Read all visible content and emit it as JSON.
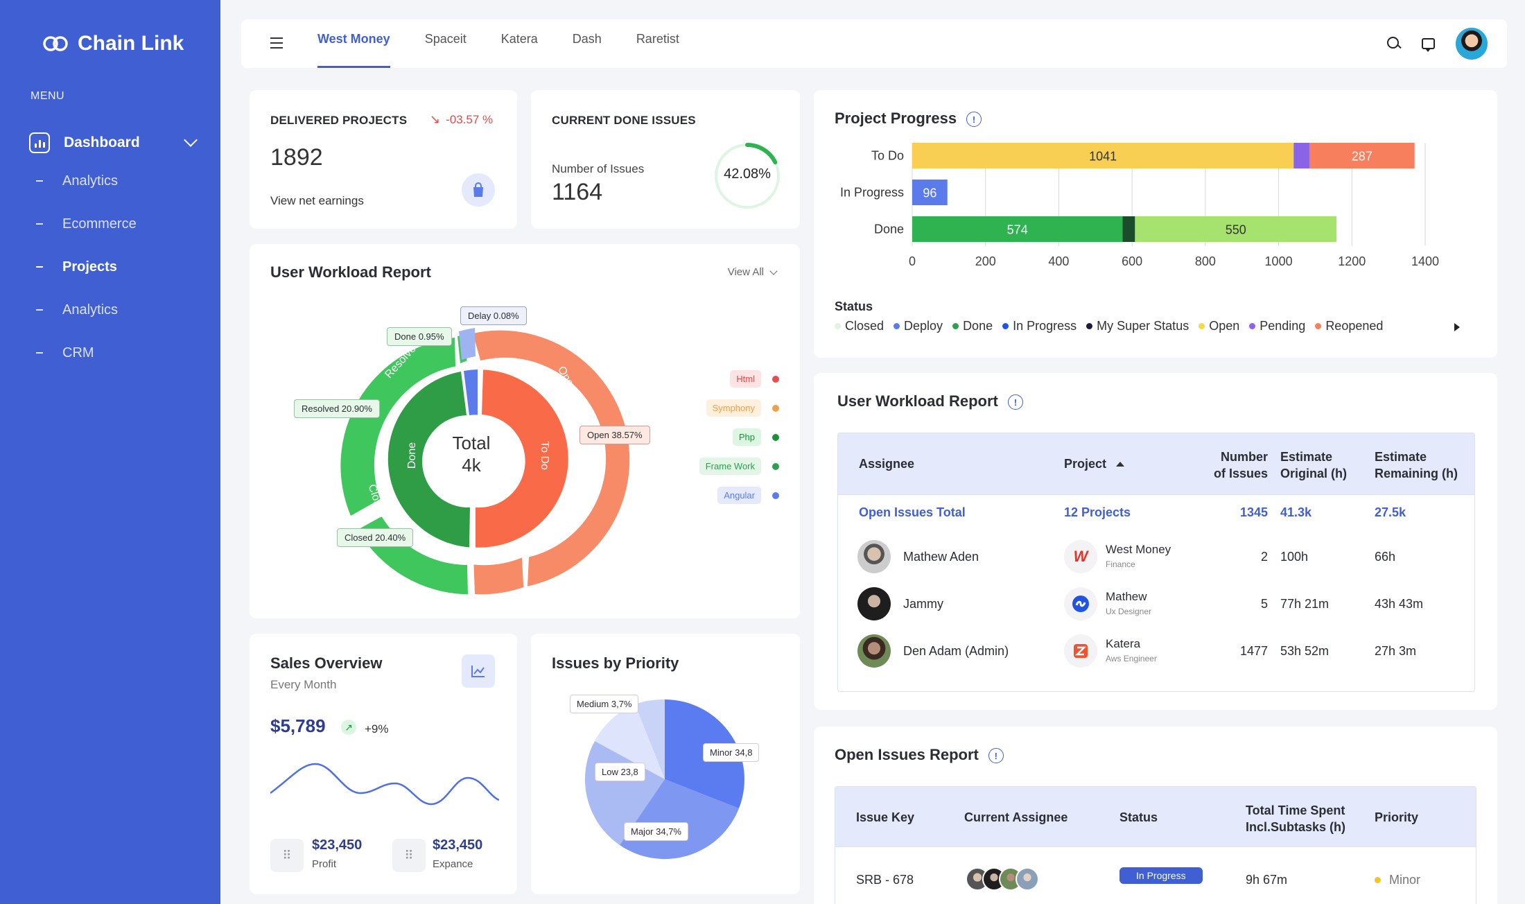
{
  "brand": {
    "name": "Chain Link"
  },
  "sidebar": {
    "menu_label": "MENU",
    "dashboard": "Dashboard",
    "items": [
      {
        "label": "Analytics"
      },
      {
        "label": "Ecommerce"
      },
      {
        "label": "Projects"
      },
      {
        "label": "Analytics"
      },
      {
        "label": "CRM"
      }
    ]
  },
  "topbar": {
    "tabs": [
      "West Money",
      "Spaceit",
      "Katera",
      "Dash",
      "Raretist"
    ]
  },
  "delivered": {
    "label": "DELIVERED PROJECTS",
    "change": "-03.57 %",
    "value": "1892",
    "link": "View net earnings"
  },
  "done_issues": {
    "label": "CURRENT DONE ISSUES",
    "sub": "Number of Issues",
    "value": "1164",
    "percent": "42.08%",
    "percent_value": 42.08
  },
  "workload": {
    "title": "User Workload Report",
    "view_all": "View All",
    "center_title": "Total",
    "center_value": "4k",
    "callouts": {
      "delay": "Delay 0.08%",
      "done": "Done 0.95%",
      "resolved": "Resolved 20.90%",
      "open": "Open 38.57%",
      "closed": "Closed 20.40%"
    },
    "ring_labels": {
      "resolved": "Resolved",
      "open": "Open",
      "closed": "Closed",
      "done": "Done",
      "todo_inner": "To Do",
      "todo_outer": "To Do"
    },
    "legend": [
      {
        "label": "Html",
        "color": "#e84c4c",
        "bg": "#fde3e3"
      },
      {
        "label": "Symphony",
        "color": "#f0a04b",
        "bg": "#fdf0df"
      },
      {
        "label": "Php",
        "color": "#1f8f3a",
        "bg": "#dcf6e2"
      },
      {
        "label": "Frame Work",
        "color": "#2f9e4f",
        "bg": "#e2f5e7"
      },
      {
        "label": "Angular",
        "color": "#5b7bea",
        "bg": "#e4e9fb"
      }
    ]
  },
  "sales": {
    "title": "Sales Overview",
    "sub": "Every Month",
    "value": "$5,789",
    "change": "+9%",
    "profit_value": "$23,450",
    "profit_label": "Profit",
    "expense_value": "$23,450",
    "expense_label": "Expance"
  },
  "priority": {
    "title": "Issues by Priority",
    "labels": {
      "medium": "Medium 3,7%",
      "minor": "Minor 34,8",
      "low": "Low 23,8",
      "major": "Major 34,7%"
    }
  },
  "progress": {
    "title": "Project Progress",
    "status_label": "Status",
    "status_legend": [
      {
        "label": "Closed",
        "color": "#dff5e3"
      },
      {
        "label": "Deploy",
        "color": "#5b7bea"
      },
      {
        "label": "Done",
        "color": "#2f9e4f"
      },
      {
        "label": "In Progress",
        "color": "#1f55e0"
      },
      {
        "label": "My Super Status",
        "color": "#1c1c3a"
      },
      {
        "label": "Open",
        "color": "#f5d94a"
      },
      {
        "label": "Pending",
        "color": "#8a63e6"
      },
      {
        "label": "Reopened",
        "color": "#f77f5e"
      }
    ]
  },
  "chart_data": {
    "type": "bar",
    "orientation": "horizontal",
    "stacked": true,
    "categories": [
      "To Do",
      "In Progress",
      "Done"
    ],
    "series": [
      {
        "name": "Open",
        "values": [
          1041,
          0,
          0
        ]
      },
      {
        "name": "Pending",
        "values": [
          43,
          0,
          0
        ]
      },
      {
        "name": "Reopened",
        "values": [
          287,
          0,
          0
        ]
      },
      {
        "name": "In Progress",
        "values": [
          0,
          96,
          0
        ]
      },
      {
        "name": "Done",
        "values": [
          0,
          0,
          574
        ]
      },
      {
        "name": "My Super Status",
        "values": [
          0,
          0,
          34
        ]
      },
      {
        "name": "Closed",
        "values": [
          0,
          0,
          550
        ]
      }
    ],
    "data_labels": [
      {
        "category": "To Do",
        "series": "Open",
        "text": "1041"
      },
      {
        "category": "To Do",
        "series": "Reopened",
        "text": "287"
      },
      {
        "category": "In Progress",
        "series": "In Progress",
        "text": "96"
      },
      {
        "category": "Done",
        "series": "Done",
        "text": "574"
      },
      {
        "category": "Done",
        "series": "Closed",
        "text": "550"
      }
    ],
    "xlim": [
      0,
      1400
    ],
    "xticks": [
      0,
      200,
      400,
      600,
      800,
      1000,
      1200,
      1400
    ],
    "grid": true,
    "legend": "bottom"
  },
  "workload_table": {
    "title": "User Workload Report",
    "headers": {
      "assignee": "Assignee",
      "project": "Project",
      "issues_1": "Number",
      "issues_2": "of Issues",
      "orig_1": "Estimate",
      "orig_2": "Original (h)",
      "rem_1": "Estimate",
      "rem_2": "Remaining (h)"
    },
    "total": {
      "label": "Open Issues Total",
      "projects": "12 Projects",
      "issues": "1345",
      "orig": "41.3k",
      "rem": "27.5k"
    },
    "rows": [
      {
        "name": "Mathew Aden",
        "project": "West Money",
        "role": "Finance",
        "issues": "2",
        "orig": "100h",
        "rem": "66h",
        "logo_color": "#e0352b"
      },
      {
        "name": "Jammy",
        "project": "Mathew",
        "role": "Ux Designer",
        "issues": "5",
        "orig": "77h 21m",
        "rem": "43h 43m",
        "logo_color": "#1f55e0"
      },
      {
        "name": "Den Adam (Admin)",
        "project": "Katera",
        "role": "Aws Engineer",
        "issues": "1477",
        "orig": "53h 52m",
        "rem": "27h 3m",
        "logo_color": "#f0532f"
      }
    ]
  },
  "open_issues": {
    "title": "Open Issues Report",
    "headers": {
      "key": "Issue Key",
      "assignee": "Current Assignee",
      "status": "Status",
      "time_1": "Total Time Spent",
      "time_2": "Incl.Subtasks (h)",
      "priority": "Priority"
    },
    "rows": [
      {
        "key": "SRB - 678",
        "status": "In Progress",
        "time": "9h 67m",
        "priority": "Minor"
      }
    ]
  }
}
